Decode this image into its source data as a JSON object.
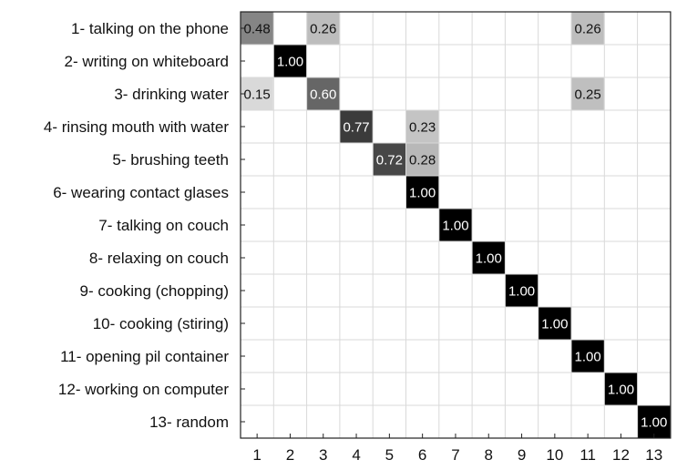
{
  "chart_data": {
    "type": "heatmap",
    "title": "",
    "xlabel": "",
    "ylabel": "",
    "x_categories": [
      "1",
      "2",
      "3",
      "4",
      "5",
      "6",
      "7",
      "8",
      "9",
      "10",
      "11",
      "12",
      "13"
    ],
    "y_categories": [
      "1- talking on the phone",
      "2- writing on whiteboard",
      "3- drinking water",
      "4- rinsing mouth with water",
      "5- brushing teeth",
      "6- wearing contact glases",
      "7- talking on couch",
      "8- relaxing on couch",
      "9- cooking (chopping)",
      "10- cooking (stiring)",
      "11- opening pil container",
      "12- working on computer",
      "13- random"
    ],
    "values": [
      [
        0.48,
        0,
        0.26,
        0,
        0,
        0,
        0,
        0,
        0,
        0,
        0.26,
        0,
        0
      ],
      [
        0,
        1.0,
        0,
        0,
        0,
        0,
        0,
        0,
        0,
        0,
        0,
        0,
        0
      ],
      [
        0.15,
        0,
        0.6,
        0,
        0,
        0,
        0,
        0,
        0,
        0,
        0.25,
        0,
        0
      ],
      [
        0,
        0,
        0,
        0.77,
        0,
        0.23,
        0,
        0,
        0,
        0,
        0,
        0,
        0
      ],
      [
        0,
        0,
        0,
        0,
        0.72,
        0.28,
        0,
        0,
        0,
        0,
        0,
        0,
        0
      ],
      [
        0,
        0,
        0,
        0,
        0,
        1.0,
        0,
        0,
        0,
        0,
        0,
        0,
        0
      ],
      [
        0,
        0,
        0,
        0,
        0,
        0,
        1.0,
        0,
        0,
        0,
        0,
        0,
        0
      ],
      [
        0,
        0,
        0,
        0,
        0,
        0,
        0,
        1.0,
        0,
        0,
        0,
        0,
        0
      ],
      [
        0,
        0,
        0,
        0,
        0,
        0,
        0,
        0,
        1.0,
        0,
        0,
        0,
        0
      ],
      [
        0,
        0,
        0,
        0,
        0,
        0,
        0,
        0,
        0,
        1.0,
        0,
        0,
        0
      ],
      [
        0,
        0,
        0,
        0,
        0,
        0,
        0,
        0,
        0,
        0,
        1.0,
        0,
        0
      ],
      [
        0,
        0,
        0,
        0,
        0,
        0,
        0,
        0,
        0,
        0,
        0,
        1.0,
        0
      ],
      [
        0,
        0,
        0,
        0,
        0,
        0,
        0,
        0,
        0,
        0,
        0,
        0,
        1.0
      ]
    ],
    "value_format": "two-decimals",
    "grid": true,
    "colormap": "grayscale (white = 0, black = 1)"
  }
}
